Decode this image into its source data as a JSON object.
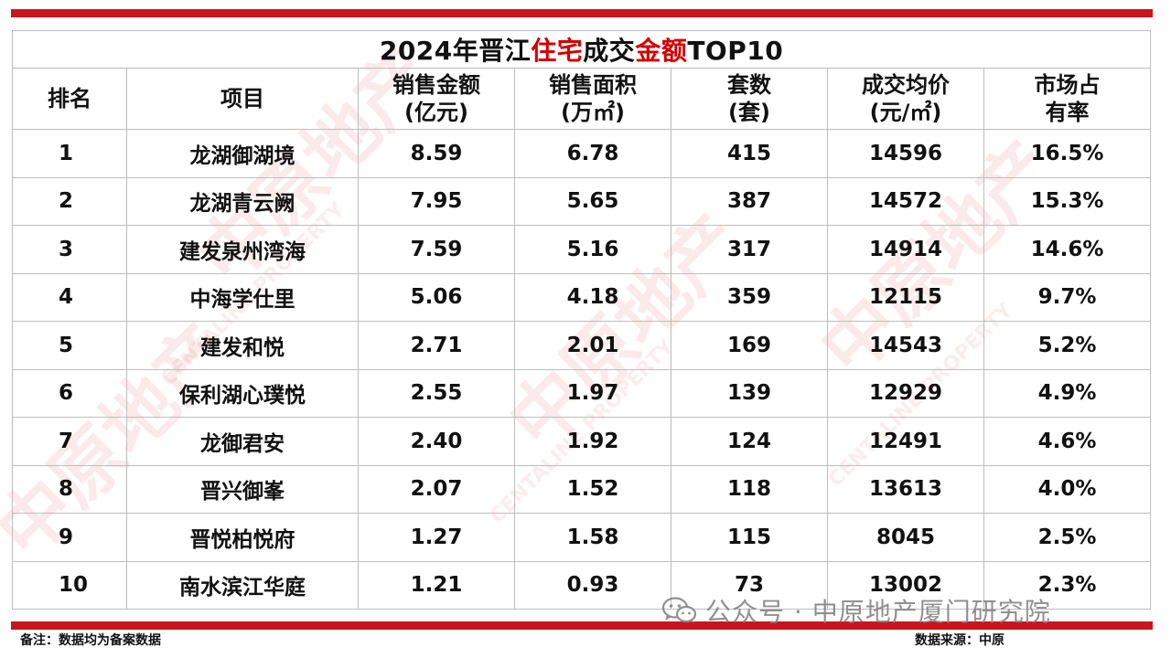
{
  "title": {
    "part1": "2024年晋江",
    "part2": "住宅",
    "part3": "成交",
    "part4": "金额",
    "part5": "TOP10"
  },
  "headers": [
    {
      "line1": "排名",
      "line2": ""
    },
    {
      "line1": "项目",
      "line2": ""
    },
    {
      "line1": "销售金额",
      "line2": "(亿元)"
    },
    {
      "line1": "销售面积",
      "line2": "(万㎡)"
    },
    {
      "line1": "套数",
      "line2": "(套)"
    },
    {
      "line1": "成交均价",
      "line2": "(元/㎡)"
    },
    {
      "line1": "市场占",
      "line2": "有率"
    }
  ],
  "rows": [
    {
      "rank": "1",
      "project": "龙湖御湖境",
      "amount": "8.59",
      "area": "6.78",
      "units": "415",
      "price": "14596",
      "share": "16.5%"
    },
    {
      "rank": "2",
      "project": "龙湖青云阙",
      "amount": "7.95",
      "area": "5.65",
      "units": "387",
      "price": "14572",
      "share": "15.3%"
    },
    {
      "rank": "3",
      "project": "建发泉州湾海",
      "amount": "7.59",
      "area": "5.16",
      "units": "317",
      "price": "14914",
      "share": "14.6%"
    },
    {
      "rank": "4",
      "project": "中海学仕里",
      "amount": "5.06",
      "area": "4.18",
      "units": "359",
      "price": "12115",
      "share": "9.7%"
    },
    {
      "rank": "5",
      "project": "建发和悦",
      "amount": "2.71",
      "area": "2.01",
      "units": "169",
      "price": "14543",
      "share": "5.2%"
    },
    {
      "rank": "6",
      "project": "保利湖心璞悦",
      "amount": "2.55",
      "area": "1.97",
      "units": "139",
      "price": "12929",
      "share": "4.9%"
    },
    {
      "rank": "7",
      "project": "龙御君安",
      "amount": "2.40",
      "area": "1.92",
      "units": "124",
      "price": "12491",
      "share": "4.6%"
    },
    {
      "rank": "8",
      "project": "晋兴御峯",
      "amount": "2.07",
      "area": "1.52",
      "units": "118",
      "price": "13613",
      "share": "4.0%"
    },
    {
      "rank": "9",
      "project": "晋悦柏悦府",
      "amount": "1.27",
      "area": "1.58",
      "units": "115",
      "price": "8045",
      "share": "2.5%"
    },
    {
      "rank": "10",
      "project": "南水滨江华庭",
      "amount": "1.21",
      "area": "0.93",
      "units": "73",
      "price": "13002",
      "share": "2.3%"
    }
  ],
  "footer": {
    "note": "备注：数据均为备案数据",
    "source": "数据来源：中原"
  },
  "wechat_label": "公众号 · 中原地产厦门研究院",
  "watermark": {
    "text": "中原地产",
    "sub": "CENTALINE PROPERTY"
  },
  "colors": {
    "accent": "#c8161d",
    "title_highlight": "#d40000"
  }
}
